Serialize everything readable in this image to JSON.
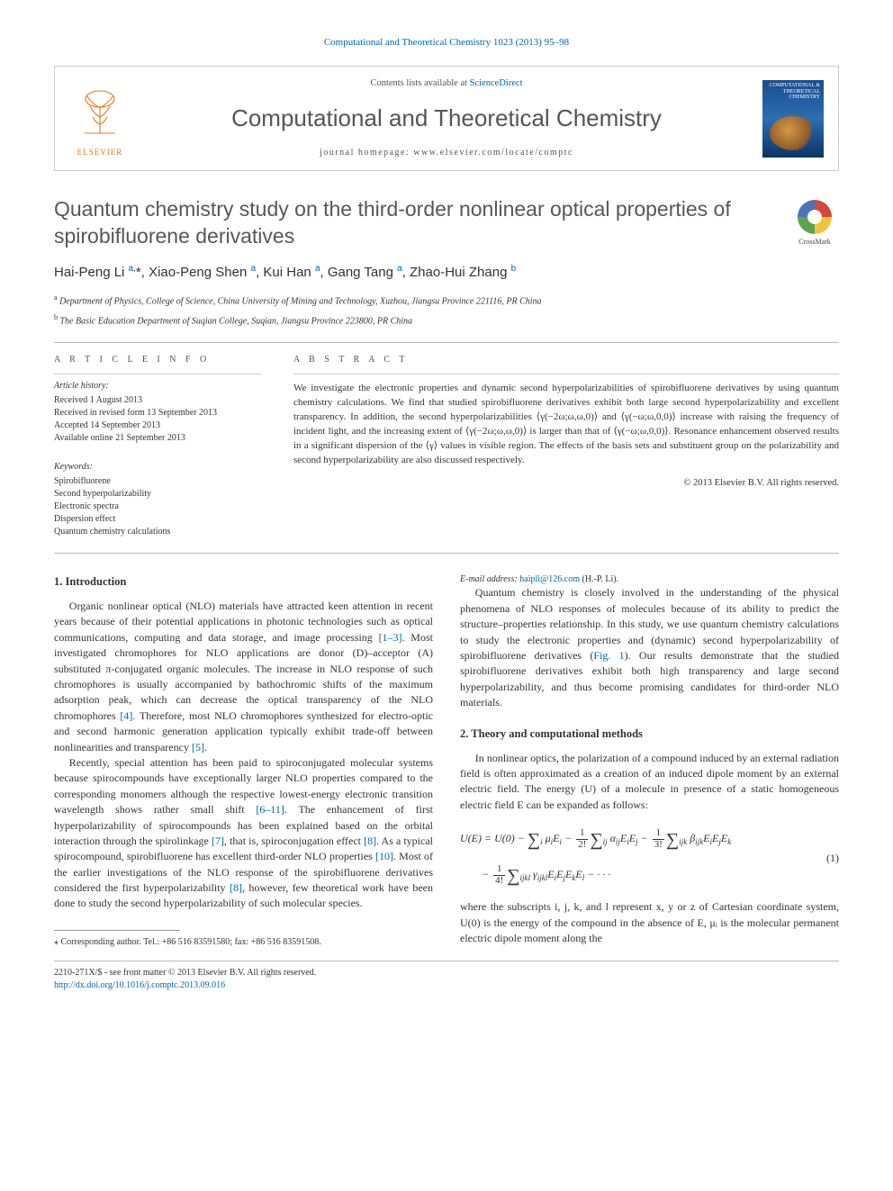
{
  "citation_top": "Computational and Theoretical Chemistry 1023 (2013) 95–98",
  "header": {
    "contents_prefix": "Contents lists available at ",
    "contents_link": "ScienceDirect",
    "journal_name": "Computational and Theoretical Chemistry",
    "homepage_prefix": "journal homepage: ",
    "homepage_url": "www.elsevier.com/locate/comptc",
    "publisher_label": "ELSEVIER",
    "cover_label": "COMPUTATIONAL & THEORETICAL CHEMISTRY"
  },
  "crossmark_label": "CrossMark",
  "title": "Quantum chemistry study on the third-order nonlinear optical properties of spirobifluorene derivatives",
  "authors_html": "Hai-Peng Li <sup>a,</sup><span class='star'>*</span>, Xiao-Peng Shen <sup>a</sup>, Kui Han <sup>a</sup>, Gang Tang <sup>a</sup>, Zhao-Hui Zhang <sup>b</sup>",
  "affiliations": [
    {
      "sup": "a",
      "text": "Department of Physics, College of Science, China University of Mining and Technology, Xuzhou, Jiangsu Province 221116, PR China"
    },
    {
      "sup": "b",
      "text": "The Basic Education Department of Suqian College, Suqian, Jiangsu Province 223800, PR China"
    }
  ],
  "info": {
    "heading": "A R T I C L E   I N F O",
    "history_head": "Article history:",
    "history": [
      "Received 1 August 2013",
      "Received in revised form 13 September 2013",
      "Accepted 14 September 2013",
      "Available online 21 September 2013"
    ],
    "keywords_head": "Keywords:",
    "keywords": [
      "Spirobifluorene",
      "Second hyperpolarizability",
      "Electronic spectra",
      "Dispersion effect",
      "Quantum chemistry calculations"
    ]
  },
  "abstract": {
    "heading": "A B S T R A C T",
    "text": "We investigate the electronic properties and dynamic second hyperpolarizabilities of spirobifluorene derivatives by using quantum chemistry calculations. We find that studied spirobifluorene derivatives exhibit both large second hyperpolarizability and excellent transparency. In addition, the second hyperpolarizabilities ⟨γ(−2ω;ω,ω,0)⟩ and ⟨γ(−ω;ω,0,0)⟩ increase with raising the frequency of incident light, and the increasing extent of ⟨γ(−2ω;ω,ω,0)⟩ is larger than that of ⟨γ(−ω;ω,0,0)⟩. Resonance enhancement observed results in a significant dispersion of the ⟨γ⟩ values in visible region. The effects of the basis sets and substituent group on the polarizability and second hyperpolarizability are also discussed respectively.",
    "copyright": "© 2013 Elsevier B.V. All rights reserved."
  },
  "sections": {
    "s1_head": "1. Introduction",
    "s1_p1_a": "Organic nonlinear optical (NLO) materials have attracted keen attention in recent years because of their potential applications in photonic technologies such as optical communications, computing and data storage, and image processing ",
    "s1_p1_ref1": "[1–3]",
    "s1_p1_b": ". Most investigated chromophores for NLO applications are donor (D)–acceptor (A) substituted π-conjugated organic molecules. The increase in NLO response of such chromophores is usually accompanied by bathochromic shifts of the maximum adsorption peak, which can decrease the optical transparency of the NLO chromophores ",
    "s1_p1_ref2": "[4]",
    "s1_p1_c": ". Therefore, most NLO chromophores synthesized for electro-optic and second harmonic generation application typically exhibit trade-off between nonlinearities and transparency ",
    "s1_p1_ref3": "[5]",
    "s1_p1_d": ".",
    "s1_p2_a": "Recently, special attention has been paid to spiroconjugated molecular systems because spirocompounds have exceptionally larger NLO properties compared to the corresponding monomers although the respective lowest-energy electronic transition wavelength shows rather small shift ",
    "s1_p2_ref1": "[6–11]",
    "s1_p2_b": ". The enhancement of first hyperpolarizability of spirocompounds has been explained based on the orbital interaction through the spirolinkage ",
    "s1_p2_ref2": "[7]",
    "s1_p2_c": ", that is, spiroconjugation effect ",
    "s1_p2_ref3": "[8]",
    "s1_p2_d": ". As a typical spirocompound, spirobifluorene has excellent third-order NLO properties ",
    "s1_p2_ref4": "[10]",
    "s1_p2_e": ". Most of the earlier investigations of the NLO response of the spirobifluorene derivatives considered the first hyperpolarizability ",
    "s1_p2_ref5": "[8]",
    "s1_p2_f": ", however, few theoretical work have been done to study the second hyperpolarizability of such molecular species.",
    "s1_p3_a": "Quantum chemistry is closely involved in the understanding of the physical phenomena of NLO responses of molecules because of its ability to predict the structure–properties relationship. In this study, we use quantum chemistry calculations to study the electronic properties and (dynamic) second hyperpolarizability of spirobifluorene derivatives (",
    "s1_p3_ref1": "Fig. 1",
    "s1_p3_b": "). Our results demonstrate that the studied spirobifluorene derivatives exhibit both high transparency and large second hyperpolarizability, and thus become promising candidates for third-order NLO materials.",
    "s2_head": "2. Theory and computational methods",
    "s2_p1": "In nonlinear optics, the polarization of a compound induced by an external radiation field is often approximated as a creation of an induced dipole moment by an external electric field. The energy (U) of a molecule in presence of a static homogeneous electric field E can be expanded as follows:",
    "eq1_num": "(1)",
    "s2_p2": "where the subscripts i, j, k, and l represent x, y or z of Cartesian coordinate system, U(0) is the energy of the compound in the absence of E, μᵢ is the molecular permanent electric dipole moment along the"
  },
  "footnotes": {
    "corr_label": "⁎ Corresponding author. Tel.: +86 516 83591580; fax: +86 516 83591508.",
    "email_prefix": "E-mail address: ",
    "email": "haipli@126.com",
    "email_suffix": " (H.-P. Li)."
  },
  "bottom": {
    "line1": "2210-271X/$ - see front matter © 2013 Elsevier B.V. All rights reserved.",
    "doi": "http://dx.doi.org/10.1016/j.comptc.2013.09.016"
  },
  "colors": {
    "link": "#0066aa",
    "accent": "#e77817"
  }
}
